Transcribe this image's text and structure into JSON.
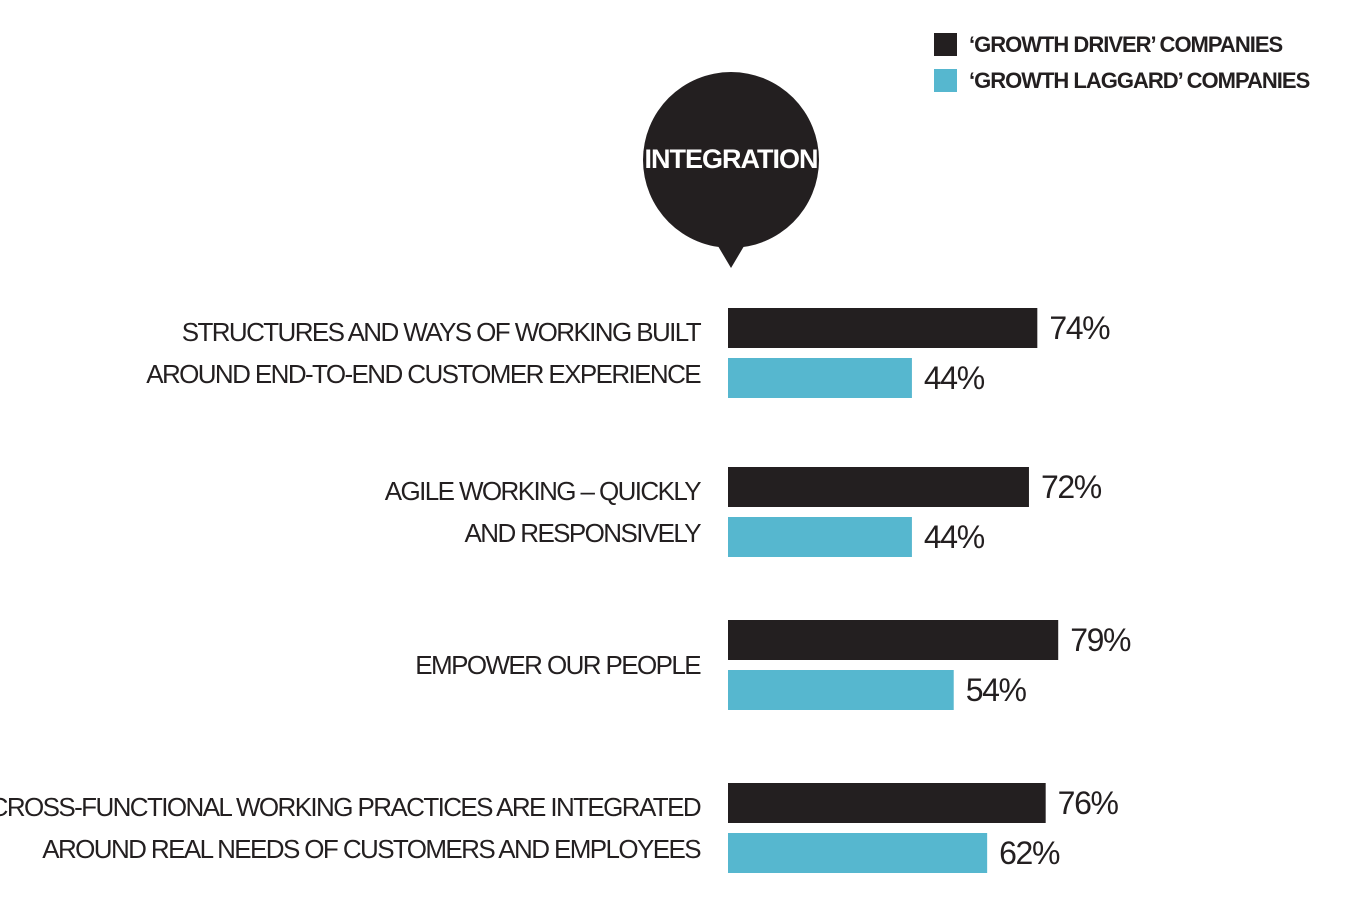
{
  "badge": {
    "title": "INTEGRATION"
  },
  "colors": {
    "driver": "#231f20",
    "laggard": "#56b7cf"
  },
  "chart_data": {
    "type": "bar",
    "orientation": "horizontal",
    "categories": [
      [
        "STRUCTURES AND WAYS OF WORKING BUILT",
        "AROUND END-TO-END CUSTOMER EXPERIENCE"
      ],
      [
        "AGILE WORKING – QUICKLY",
        "AND RESPONSIVELY"
      ],
      [
        "EMPOWER OUR PEOPLE"
      ],
      [
        "CROSS-FUNCTIONAL WORKING PRACTICES ARE INTEGRATED",
        "AROUND REAL NEEDS OF CUSTOMERS AND EMPLOYEES"
      ]
    ],
    "series": [
      {
        "name": "‘GROWTH DRIVER’ COMPANIES",
        "values": [
          74,
          72,
          79,
          76
        ],
        "labels": [
          "74%",
          "72%",
          "79%",
          "76%"
        ]
      },
      {
        "name": "‘GROWTH LAGGARD’ COMPANIES",
        "values": [
          44,
          44,
          54,
          62
        ],
        "labels": [
          "44%",
          "44%",
          "54%",
          "62%"
        ]
      }
    ],
    "unit": "%",
    "xlim": [
      0,
      100
    ],
    "legend": "top-right",
    "grid": false,
    "axes_visible": false
  }
}
